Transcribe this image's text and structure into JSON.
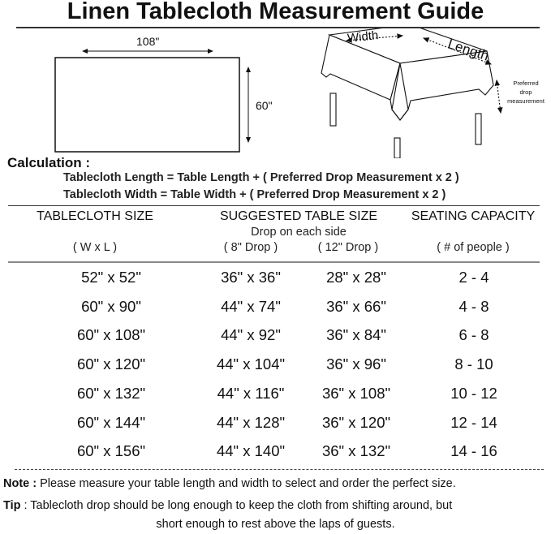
{
  "title": "Linen Tablecloth Measurement Guide",
  "diagram": {
    "width_label": "108\"",
    "height_label": "60\"",
    "table_width": "Width",
    "table_length": "Length",
    "drop_label": [
      "Preferred",
      "drop",
      "measurement"
    ]
  },
  "calculation": {
    "heading": "Calculation :",
    "length_formula": "Tablecloth Length = Table Length + ( Preferred Drop Measurement x 2 )",
    "width_formula": "Tablecloth Width = Table Width + ( Preferred Drop Measurement x 2 )"
  },
  "table": {
    "headers": {
      "size": "TABLECLOTH SIZE",
      "suggested": "SUGGESTED TABLE SIZE",
      "seating": "SEATING CAPACITY"
    },
    "subheaders": {
      "drop_each_side": "Drop on each side",
      "wxl": "( W x L )",
      "drop8": "( 8\" Drop )",
      "drop12": "( 12\" Drop )",
      "people": "( # of people )"
    },
    "rows": [
      [
        "52\" x 52\"",
        "36\" x 36\"",
        "28\" x 28\"",
        "2 - 4"
      ],
      [
        "60\" x 90\"",
        "44\" x 74\"",
        "36\" x 66\"",
        "4 - 8"
      ],
      [
        "60\" x 108\"",
        "44\" x 92\"",
        "36\" x 84\"",
        "6 - 8"
      ],
      [
        "60\" x 120\"",
        "44\" x 104\"",
        "36\" x 96\"",
        "8 - 10"
      ],
      [
        "60\" x 132\"",
        "44\" x 116\"",
        "36\" x 108\"",
        "10 - 12"
      ],
      [
        "60\" x 144\"",
        "44\" x 128\"",
        "36\" x 120\"",
        "12 - 14"
      ],
      [
        "60\" x 156\"",
        "44\" x 140\"",
        "36\" x 132\"",
        "14 - 16"
      ]
    ]
  },
  "note": {
    "label": "Note :",
    "text": " Please measure your table length and width to select and order the perfect size."
  },
  "tip": {
    "label": "Tip",
    "text1": " : Tablecloth drop should be long enough to keep the cloth from shifting around, but",
    "text2": "short enough to rest above the laps of guests."
  }
}
